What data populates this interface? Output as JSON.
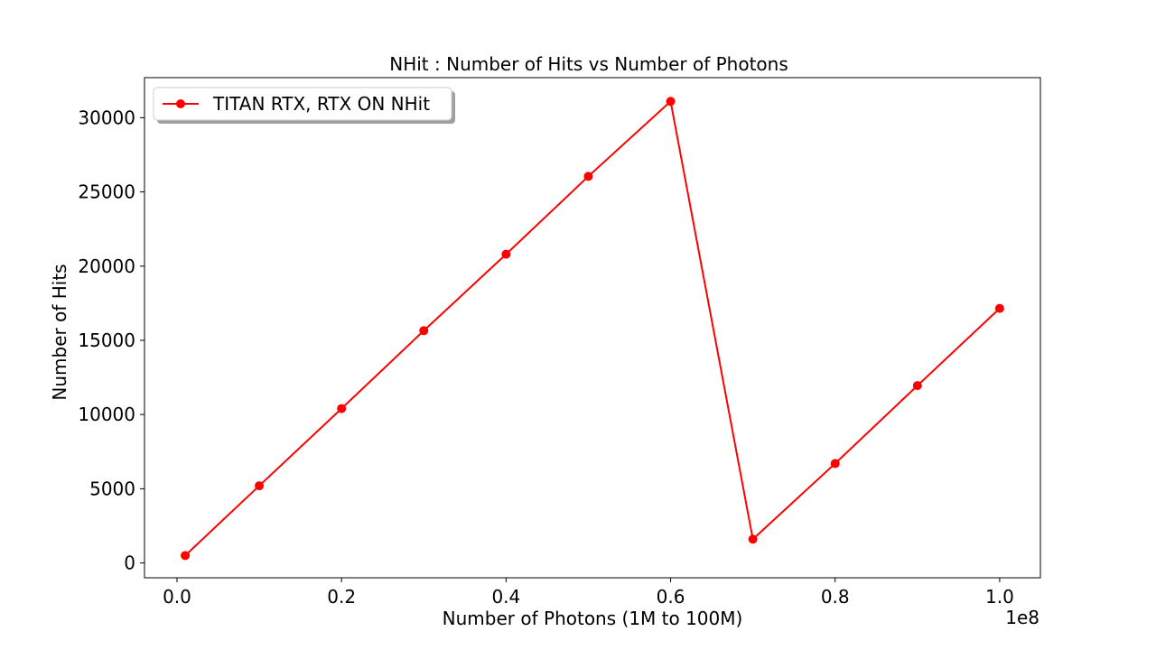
{
  "chart_data": {
    "type": "line",
    "title": "NHit : Number of Hits vs Number of Photons",
    "xlabel": "Number of Photons (1M to 100M)",
    "ylabel": "Number of Hits",
    "x_offset_label": "1e8",
    "xlim": [
      -0.0395,
      1.0495
    ],
    "ylim": [
      -1000,
      32700
    ],
    "x_scale": 100000000,
    "xticks": [
      0.0,
      0.2,
      0.4,
      0.6,
      0.8,
      1.0
    ],
    "xtick_labels": [
      "0.0",
      "0.2",
      "0.4",
      "0.6",
      "0.8",
      "1.0"
    ],
    "yticks": [
      0,
      5000,
      10000,
      15000,
      20000,
      25000,
      30000
    ],
    "ytick_labels": [
      "0",
      "5000",
      "10000",
      "15000",
      "20000",
      "25000",
      "30000"
    ],
    "grid": false,
    "legend_position": "top-left",
    "series": [
      {
        "name": "TITAN RTX, RTX ON NHit",
        "color": "#ff0000",
        "marker": "circle",
        "x": [
          1000000,
          10000000,
          20000000,
          30000000,
          40000000,
          50000000,
          60000000,
          70000000,
          80000000,
          90000000,
          100000000
        ],
        "values": [
          500,
          5200,
          10400,
          15650,
          20800,
          26050,
          31100,
          1600,
          6700,
          11950,
          17150
        ]
      }
    ]
  }
}
